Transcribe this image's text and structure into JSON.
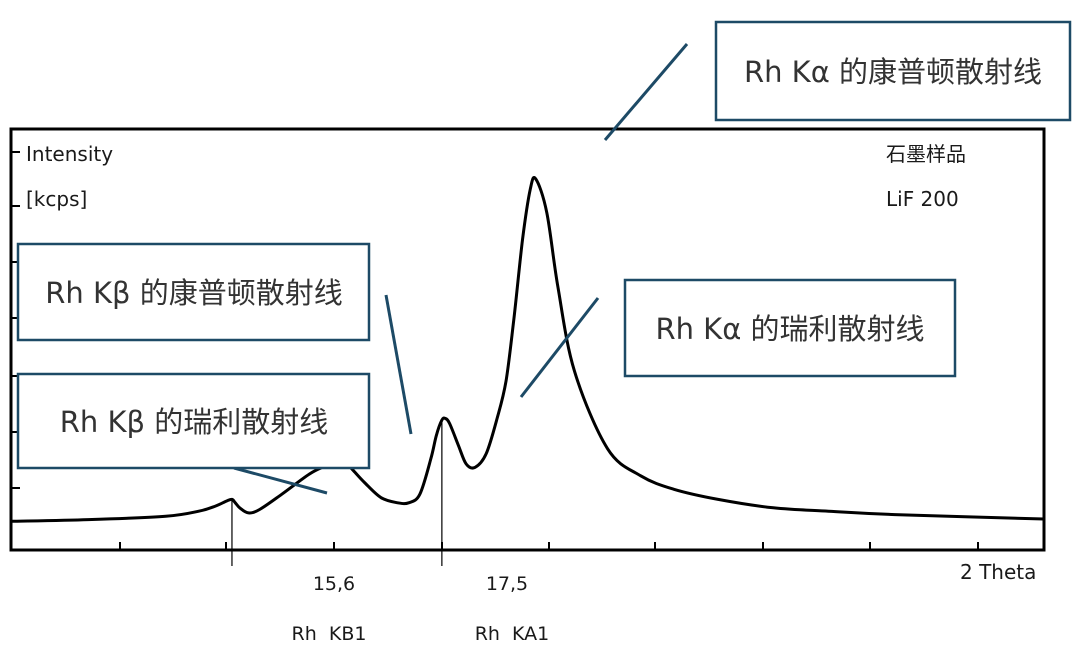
{
  "chart_data": {
    "type": "line",
    "ylabel_line1": "Intensity",
    "ylabel_line2": "[kcps]",
    "xlabel": "2 Theta",
    "sample": "石墨样品",
    "crystal": "LiF 200",
    "xlim": [
      13.6,
      22.95
    ],
    "ylim": [
      0,
      11
    ],
    "x_ticks": [
      {
        "value": 15.6,
        "label": "15,6",
        "line": "Rh  KB1"
      },
      {
        "value": 17.5,
        "label": "17,5",
        "line": "Rh  KA1"
      }
    ],
    "series": [
      {
        "x": [
          13.6,
          14.3,
          15.0,
          15.3,
          15.45,
          15.55,
          15.6,
          15.63,
          15.67,
          15.75,
          15.85,
          16.05,
          16.3,
          16.45,
          16.55,
          16.62,
          16.7,
          16.8,
          16.95,
          17.1,
          17.2,
          17.3,
          17.4,
          17.45,
          17.5,
          17.53,
          17.57,
          17.65,
          17.72,
          17.8,
          17.9,
          18.0,
          18.08,
          18.15,
          18.23,
          18.3,
          18.35,
          18.45,
          18.55,
          18.7,
          19.0,
          19.3,
          19.6,
          20.0,
          20.5,
          21.0,
          21.6,
          22.95
        ],
        "y": [
          0.05,
          0.1,
          0.2,
          0.35,
          0.5,
          0.65,
          0.7,
          0.6,
          0.45,
          0.3,
          0.4,
          0.85,
          1.45,
          1.7,
          1.86,
          1.82,
          1.55,
          1.2,
          0.75,
          0.6,
          0.6,
          0.85,
          1.9,
          2.6,
          3.05,
          3.1,
          2.95,
          2.3,
          1.75,
          1.65,
          2.05,
          3.1,
          4.2,
          6.0,
          8.4,
          9.9,
          10.2,
          9.2,
          7.0,
          4.5,
          2.2,
          1.4,
          1.0,
          0.7,
          0.45,
          0.35,
          0.25,
          0.12
        ]
      }
    ],
    "annotations": [
      {
        "text": "Rh Kα 的康普顿散射线"
      },
      {
        "text": "Rh Kβ 的康普顿散射线"
      },
      {
        "text": "Rh Kα 的瑞利散射线"
      },
      {
        "text": "Rh Kβ 的瑞利散射线"
      }
    ]
  }
}
